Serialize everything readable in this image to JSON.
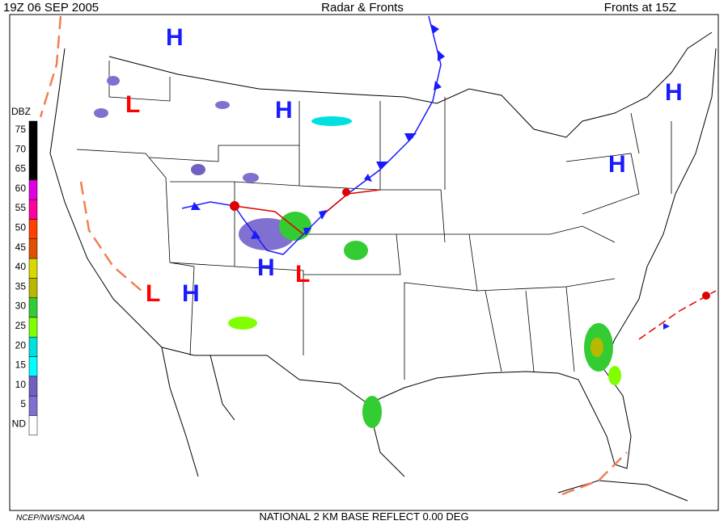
{
  "header": {
    "left": "19Z  06 SEP  2005",
    "center": "Radar & Fronts",
    "right": "Fronts at 15Z"
  },
  "legend": {
    "title": "DBZ",
    "levels": [
      {
        "label": "75",
        "color": "#000000"
      },
      {
        "label": "70",
        "color": "#000000"
      },
      {
        "label": "65",
        "color": "#000000"
      },
      {
        "label": "60",
        "color": "#e000e0"
      },
      {
        "label": "55",
        "color": "#ff00a0"
      },
      {
        "label": "50",
        "color": "#ff4000"
      },
      {
        "label": "45",
        "color": "#e05000"
      },
      {
        "label": "40",
        "color": "#d8d800"
      },
      {
        "label": "35",
        "color": "#b8b800"
      },
      {
        "label": "30",
        "color": "#33cc33"
      },
      {
        "label": "25",
        "color": "#80ff00"
      },
      {
        "label": "20",
        "color": "#00e0e0"
      },
      {
        "label": "15",
        "color": "#00ffff"
      },
      {
        "label": "10",
        "color": "#7060c0"
      },
      {
        "label": "5",
        "color": "#8070d0"
      },
      {
        "label": "ND",
        "color": "#ffffff"
      }
    ]
  },
  "pressure_centers": [
    {
      "label": "H",
      "color": "#1a1aff"
    },
    {
      "label": "L",
      "color": "#ff0000"
    },
    {
      "label": "H",
      "color": "#1a1aff"
    },
    {
      "label": "H",
      "color": "#1a1aff"
    },
    {
      "label": "H",
      "color": "#1a1aff"
    },
    {
      "label": "H",
      "color": "#1a1aff"
    },
    {
      "label": "L",
      "color": "#ff0000"
    },
    {
      "label": "L",
      "color": "#ff0000"
    },
    {
      "label": "H",
      "color": "#1a1aff"
    }
  ],
  "footer": {
    "credit": "NCEP/NWS/NOAA",
    "product": "NATIONAL 2 KM BASE REFLECT 0.00 DEG"
  }
}
